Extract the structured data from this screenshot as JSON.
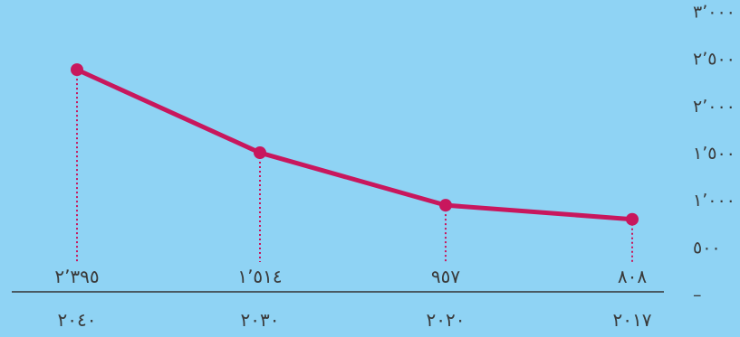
{
  "chart_data": {
    "type": "line",
    "title": "",
    "xlabel": "",
    "ylabel": "",
    "categories": [
      "٢٠٤٠",
      "٢٠٣٠",
      "٢٠٢٠",
      "٢٠١٧"
    ],
    "categories_numeric": [
      2040,
      2030,
      2020,
      2017
    ],
    "values": [
      2395,
      1514,
      957,
      808
    ],
    "value_labels": [
      "٢٬٣٩٥",
      "١٬٥١٤",
      "٩٥٧",
      "٨٠٨"
    ],
    "y_ticks": [
      0,
      500,
      1000,
      1500,
      2000,
      2500,
      3000
    ],
    "y_tick_labels": [
      "–",
      "٥٠٠",
      "١٬٠٠٠",
      "١٬٥٠٠",
      "٢٬٠٠٠",
      "٢٬٥٠٠",
      "٣٬٠٠٠"
    ],
    "ylim": [
      0,
      3000
    ],
    "x_order": "right-to-left",
    "grid": false,
    "colors": {
      "background": "#8fd3f4",
      "line": "#c8175d",
      "text": "#3a3a3a",
      "axis": "#333333"
    }
  }
}
